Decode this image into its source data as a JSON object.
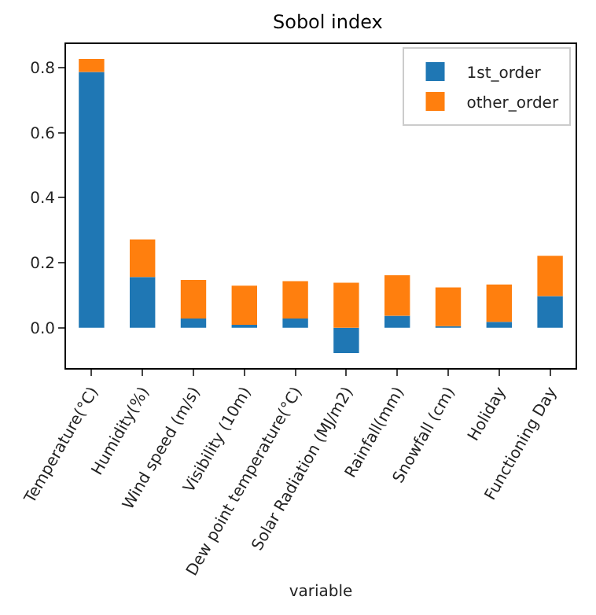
{
  "chart_data": {
    "type": "bar",
    "title": "Sobol index",
    "xlabel": "variable",
    "stacked": true,
    "categories": [
      "Temperature(°C)",
      "Humidity(%)",
      "Wind speed (m/s)",
      "Visibility (10m)",
      "Dew point temperature(°C)",
      "Solar Radiation (MJ/m2)",
      "Rainfall(mm)",
      "Snowfall (cm)",
      "Holiday",
      "Functioning Day"
    ],
    "series": [
      {
        "name": "1st_order",
        "color": "#1f77b4",
        "values": [
          0.786,
          0.156,
          0.028,
          0.009,
          0.028,
          -0.078,
          0.037,
          0.005,
          0.018,
          0.097
        ]
      },
      {
        "name": "other_order",
        "color": "#ff7f0e",
        "values": [
          0.04,
          0.115,
          0.119,
          0.12,
          0.115,
          0.138,
          0.124,
          0.119,
          0.115,
          0.124
        ]
      }
    ],
    "ylim": [
      -0.124,
      0.872
    ],
    "yticks": [
      {
        "value": 0,
        "label": "0.0"
      },
      0.2,
      0.4,
      0.6,
      0.8
    ],
    "grid": false,
    "legend": "top right"
  }
}
